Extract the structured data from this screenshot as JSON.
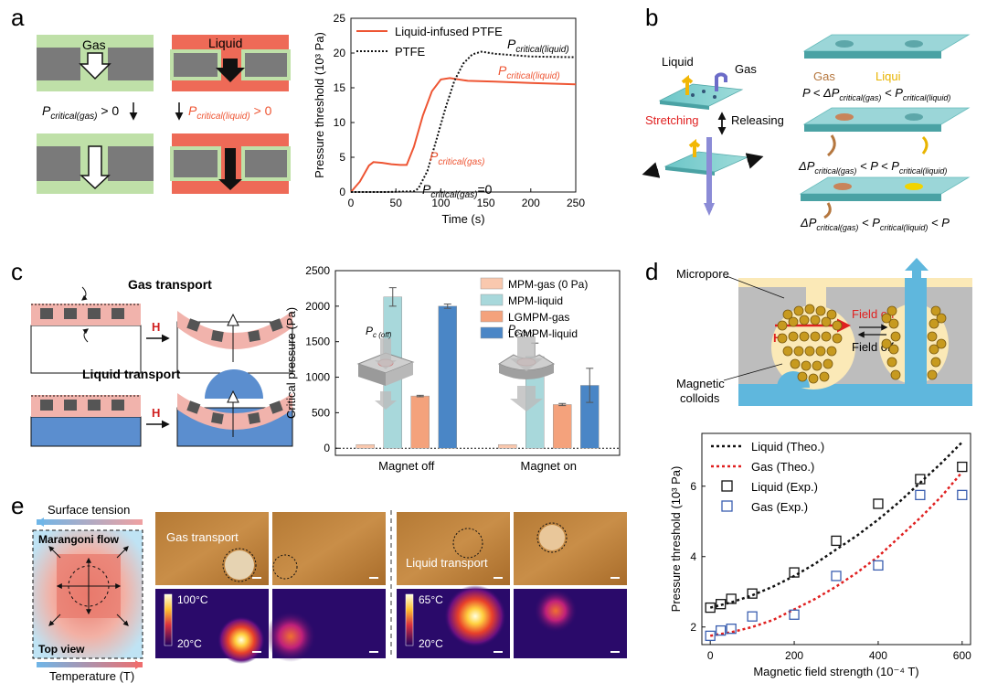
{
  "panels": {
    "a": "a",
    "b": "b",
    "c": "c",
    "d": "d",
    "e": "e"
  },
  "a": {
    "gas_label": "Gas",
    "liquid_label": "Liquid",
    "p_crit_gas_text": "P",
    "p_crit_gas_sub": "critical(gas)",
    "p_crit_gas_tail": " > 0",
    "p_crit_liq_text": "P",
    "p_crit_liq_sub": "critical(liquid)",
    "p_crit_liq_tail": " > 0",
    "annot_pcl_black": "P",
    "annot_pcl_black_sub": "critical(liquid)",
    "annot_pcl_red": "P",
    "annot_pcl_red_sub": "critical(liquid)",
    "annot_pcg_red": "P",
    "annot_pcg_red_sub": "critical(gas)",
    "annot_pcg_zero": "P",
    "annot_pcg_zero_sub": "critical(gas)",
    "annot_pcg_zero_tail": "=0"
  },
  "b": {
    "liquid": "Liquid",
    "gas": "Gas",
    "stretching": "Stretching",
    "releasing": "Releasing",
    "gas2": "Gas",
    "liqui": "Liqui",
    "cond1": "P < ΔP",
    "cond1_sub": "critical(gas)",
    "cond1_tail": " < P",
    "cond1_sub2": "critical(liquid)",
    "cond2": "ΔP",
    "cond2_sub": "critical(gas)",
    "cond2_mid": " < P < P",
    "cond2_sub2": "critical(liquid)",
    "cond3": "ΔP",
    "cond3_sub": "critical(gas)",
    "cond3_mid": " < P",
    "cond3_sub2": "critical(liquid)",
    "cond3_tail": " < P"
  },
  "c": {
    "gas_transport": "Gas transport",
    "liquid_transport": "Liquid transport",
    "H1": "H",
    "H2": "H",
    "pc_off": "P",
    "pc_off_sub": "c (off)",
    "pc_on": "P",
    "pc_on_sub": "c (on)"
  },
  "d": {
    "micropore": "Micropore",
    "field_on": "Field on",
    "field_off": "Field off",
    "H": "H",
    "colloids_1": "Magnetic",
    "colloids_2": "colloids"
  },
  "e": {
    "surface_tension": "Surface tension",
    "marangoni": "Marangoni flow",
    "top_view": "Top view",
    "temperature": "Temperature (T)",
    "gas_transport": "Gas transport",
    "liquid_transport": "Liquid transport",
    "t_max_1": "100°C",
    "t_min_1": "20°C",
    "t_max_2": "65°C",
    "t_min_2": "20°C"
  },
  "colors": {
    "red": "#ee5533",
    "green": "#bfe0a8",
    "gray": "#7a7a7a",
    "blue": "#5fb7dd",
    "pink": "#f1b3ac",
    "teal": "#7fc7c6",
    "cream": "#fbe9b7"
  },
  "chart_data": [
    {
      "type": "line",
      "id": "a-chart",
      "title": "",
      "xlabel": "Time (s)",
      "ylabel": "Pressure threshold (10³ Pa)",
      "xlim": [
        0,
        250
      ],
      "ylim": [
        0,
        25
      ],
      "xticks": [
        0,
        50,
        100,
        150,
        200,
        250
      ],
      "yticks": [
        0,
        5,
        10,
        15,
        20,
        25
      ],
      "series": [
        {
          "name": "Liquid-infused PTFE",
          "style": "solid",
          "color": "#ee5533",
          "x": [
            0,
            10,
            20,
            25,
            35,
            45,
            55,
            62,
            70,
            80,
            90,
            100,
            110,
            130,
            160,
            200,
            250
          ],
          "y": [
            0,
            1.5,
            3.8,
            4.3,
            4.2,
            4.0,
            3.9,
            3.9,
            6.5,
            11.0,
            14.5,
            16.2,
            16.4,
            16.0,
            15.9,
            15.7,
            15.5
          ]
        },
        {
          "name": "PTFE",
          "style": "dotted",
          "color": "#111111",
          "x": [
            0,
            40,
            70,
            75,
            85,
            95,
            105,
            115,
            125,
            135,
            145,
            160,
            200,
            250
          ],
          "y": [
            0,
            0,
            0.1,
            0.5,
            3.0,
            7.5,
            12.0,
            16.0,
            18.5,
            19.8,
            20.2,
            19.9,
            19.5,
            19.4
          ]
        }
      ]
    },
    {
      "type": "bar",
      "id": "c-chart",
      "ylabel": "Critical pressure (Pa)",
      "ylim": [
        -100,
        2500
      ],
      "yticks": [
        0,
        500,
        1000,
        1500,
        2000,
        2500
      ],
      "categories": [
        "Magnet off",
        "Magnet on"
      ],
      "series": [
        {
          "name": "MPM-gas (0 Pa)",
          "color": "#f9c8ae",
          "values": [
            0,
            0
          ],
          "errors": [
            0,
            0
          ]
        },
        {
          "name": "MPM-liquid",
          "color": "#a8d8db",
          "values": [
            2130,
            1290
          ],
          "errors": [
            130,
            190
          ]
        },
        {
          "name": "LGMPM-gas",
          "color": "#f4a27c",
          "values": [
            735,
            615
          ],
          "errors": [
            10,
            15
          ]
        },
        {
          "name": "LGMPM-liquid",
          "color": "#4a86c6",
          "values": [
            2000,
            885
          ],
          "errors": [
            30,
            240
          ]
        }
      ]
    },
    {
      "type": "scatter",
      "id": "d-chart",
      "xlabel": "Magnetic field strength (10⁻⁴ T)",
      "ylabel": "Pressure threshold (10³ Pa)",
      "xlim": [
        -20,
        620
      ],
      "ylim": [
        1.5,
        7.5
      ],
      "xticks": [
        0,
        200,
        400,
        600
      ],
      "yticks": [
        2,
        4,
        6
      ],
      "series": [
        {
          "name": "Liquid (Theo.)",
          "kind": "curve",
          "color": "#111111",
          "x": [
            0,
            50,
            100,
            150,
            200,
            250,
            300,
            350,
            400,
            450,
            500,
            550,
            600
          ],
          "y": [
            2.55,
            2.7,
            2.9,
            3.15,
            3.45,
            3.8,
            4.2,
            4.6,
            5.05,
            5.55,
            6.1,
            6.65,
            7.25
          ]
        },
        {
          "name": "Gas (Theo.)",
          "kind": "curve",
          "color": "#e02020",
          "x": [
            0,
            50,
            100,
            150,
            200,
            250,
            300,
            350,
            400,
            450,
            500,
            550,
            600
          ],
          "y": [
            1.75,
            1.85,
            2.0,
            2.2,
            2.5,
            2.8,
            3.15,
            3.55,
            4.0,
            4.55,
            5.1,
            5.7,
            6.4
          ]
        },
        {
          "name": "Liquid (Exp.)",
          "kind": "points",
          "color": "#111111",
          "x": [
            0,
            25,
            50,
            100,
            200,
            300,
            400,
            500,
            600
          ],
          "y": [
            2.55,
            2.65,
            2.8,
            2.95,
            3.55,
            4.45,
            5.5,
            6.2,
            6.55
          ]
        },
        {
          "name": "Gas (Exp.)",
          "kind": "points",
          "color": "#3b5fb0",
          "x": [
            0,
            25,
            50,
            100,
            200,
            300,
            400,
            500,
            600
          ],
          "y": [
            1.75,
            1.9,
            1.95,
            2.3,
            2.35,
            3.45,
            3.75,
            5.75,
            5.75
          ]
        }
      ]
    }
  ]
}
